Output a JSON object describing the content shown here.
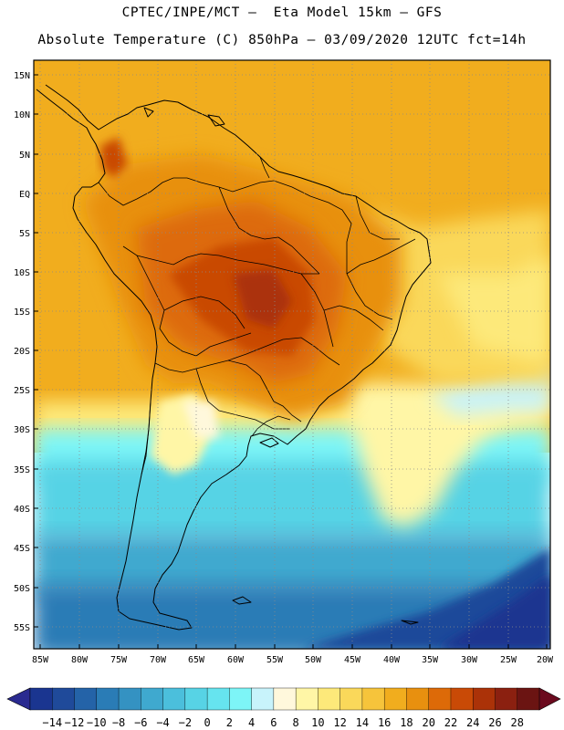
{
  "title": {
    "line1": "CPTEC/INPE/MCT –  Eta Model 15km – GFS",
    "line2": "Absolute Temperature (C) 850hPa – 03/09/2020 12UTC fct=14h"
  },
  "map": {
    "lat_labels": [
      "15N",
      "10N",
      "5N",
      "EQ",
      "5S",
      "10S",
      "15S",
      "20S",
      "25S",
      "30S",
      "35S",
      "40S",
      "45S",
      "50S",
      "55S"
    ],
    "lon_labels": [
      "85W",
      "80W",
      "75W",
      "70W",
      "65W",
      "60W",
      "55W",
      "50W",
      "45W",
      "40W",
      "35W",
      "30W",
      "25W",
      "20W"
    ],
    "lon_range": [
      -86,
      -19.5
    ],
    "lat_range": [
      -58,
      16.5
    ],
    "grid": true
  },
  "colorbar": {
    "labels": [
      "-14",
      "-12",
      "-10",
      "-8",
      "-6",
      "-4",
      "-2",
      "0",
      "2",
      "4",
      "6",
      "8",
      "10",
      "12",
      "14",
      "16",
      "18",
      "20",
      "22",
      "24",
      "26",
      "28"
    ],
    "colors": [
      "#1a3590",
      "#1f4a9a",
      "#2463a8",
      "#2a7cb6",
      "#3492c2",
      "#3fa9cf",
      "#4bbfdc",
      "#57d3e5",
      "#66e4ef",
      "#7df5f7",
      "#c8f3fb",
      "#fff8dc",
      "#fff6a6",
      "#fde97a",
      "#fad85a",
      "#f6c43b",
      "#f1ad1e",
      "#e8900f",
      "#dd6a08",
      "#c94a06",
      "#ab3208",
      "#8b2010",
      "#6b1412"
    ],
    "under_color": "#2a2a90",
    "over_color": "#6b0a1e"
  }
}
